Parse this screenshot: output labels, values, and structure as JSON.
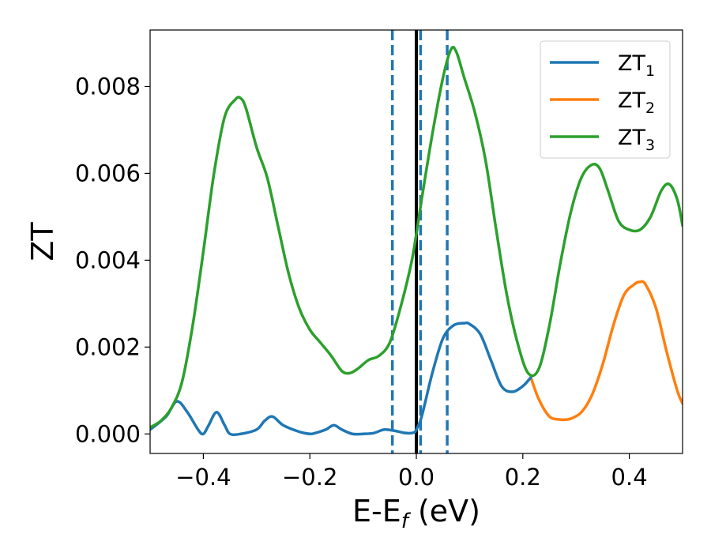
{
  "chart_data": {
    "type": "line",
    "xlabel": "E-E",
    "xlabel_subscript": "f",
    "xlabel_unit": " (eV)",
    "ylabel": "ZT",
    "xlim": [
      -0.5,
      0.5
    ],
    "ylim": [
      -0.00045,
      0.0093
    ],
    "xticks": [
      -0.4,
      -0.2,
      0.0,
      0.2,
      0.4
    ],
    "xtick_labels": [
      "−0.4",
      "−0.2",
      "0.0",
      "0.2",
      "0.4"
    ],
    "yticks": [
      0.0,
      0.002,
      0.004,
      0.006,
      0.008
    ],
    "ytick_labels": [
      "0.000",
      "0.002",
      "0.004",
      "0.006",
      "0.008"
    ],
    "grid": false,
    "legend_position": "top-right",
    "vertical_lines": [
      {
        "x": 0.0,
        "style": "solid",
        "color": "#000000"
      },
      {
        "x": -0.045,
        "style": "dashed",
        "color": "#1f77b4"
      },
      {
        "x": 0.008,
        "style": "dashed",
        "color": "#1f77b4"
      },
      {
        "x": 0.058,
        "style": "dashed",
        "color": "#1f77b4"
      }
    ],
    "series": [
      {
        "name": "ZT",
        "subscript": "1",
        "color": "#1f77b4",
        "x": [
          -0.5,
          -0.47,
          -0.45,
          -0.43,
          -0.41,
          -0.4,
          -0.39,
          -0.375,
          -0.36,
          -0.35,
          -0.33,
          -0.3,
          -0.285,
          -0.27,
          -0.25,
          -0.22,
          -0.2,
          -0.19,
          -0.17,
          -0.155,
          -0.14,
          -0.12,
          -0.1,
          -0.08,
          -0.06,
          -0.04,
          -0.02,
          -0.005,
          0.0,
          0.01,
          0.03,
          0.05,
          0.07,
          0.09,
          0.1,
          0.12,
          0.14,
          0.16,
          0.18,
          0.2,
          0.215
        ],
        "y": [
          0.0001,
          0.0004,
          0.00075,
          0.0005,
          0.0001,
          0.0,
          0.0002,
          0.0005,
          0.0002,
          0.0,
          0.0,
          0.0001,
          0.0003,
          0.0004,
          0.0002,
          5e-05,
          0.0,
          2e-05,
          0.0001,
          0.0002,
          0.0001,
          0.0,
          0.0,
          2e-05,
          0.0001,
          7e-05,
          2e-05,
          3e-05,
          0.0001,
          0.0004,
          0.0014,
          0.0022,
          0.0025,
          0.00255,
          0.00253,
          0.0023,
          0.0017,
          0.0011,
          0.00097,
          0.0011,
          0.0013
        ]
      },
      {
        "name": "ZT",
        "subscript": "2",
        "color": "#ff7f0e",
        "x": [
          0.215,
          0.23,
          0.25,
          0.27,
          0.28,
          0.29,
          0.31,
          0.33,
          0.35,
          0.37,
          0.39,
          0.41,
          0.42,
          0.43,
          0.45,
          0.47,
          0.49,
          0.5
        ],
        "y": [
          0.0013,
          0.0008,
          0.0004,
          0.00033,
          0.00033,
          0.00035,
          0.0005,
          0.0009,
          0.0016,
          0.0025,
          0.0032,
          0.00345,
          0.0035,
          0.00345,
          0.0029,
          0.0019,
          0.001,
          0.0007
        ]
      },
      {
        "name": "ZT",
        "subscript": "3",
        "color": "#2ca02c",
        "x": [
          -0.5,
          -0.48,
          -0.46,
          -0.44,
          -0.42,
          -0.4,
          -0.38,
          -0.36,
          -0.34,
          -0.33,
          -0.32,
          -0.3,
          -0.28,
          -0.26,
          -0.24,
          -0.22,
          -0.2,
          -0.18,
          -0.16,
          -0.14,
          -0.125,
          -0.11,
          -0.09,
          -0.07,
          -0.05,
          -0.03,
          -0.01,
          0.0,
          0.01,
          0.03,
          0.05,
          0.065,
          0.075,
          0.09,
          0.11,
          0.13,
          0.15,
          0.17,
          0.19,
          0.21,
          0.23,
          0.25,
          0.27,
          0.29,
          0.31,
          0.33,
          0.345,
          0.36,
          0.38,
          0.4,
          0.42,
          0.44,
          0.46,
          0.475,
          0.49,
          0.5
        ],
        "y": [
          0.00015,
          0.0003,
          0.0006,
          0.0012,
          0.0025,
          0.0042,
          0.006,
          0.0073,
          0.0077,
          0.00773,
          0.0075,
          0.0066,
          0.0059,
          0.0048,
          0.0037,
          0.0029,
          0.0024,
          0.0021,
          0.0018,
          0.00145,
          0.0014,
          0.0015,
          0.0017,
          0.0018,
          0.0021,
          0.0029,
          0.0039,
          0.0046,
          0.0054,
          0.0069,
          0.0082,
          0.00885,
          0.0088,
          0.0082,
          0.0074,
          0.0063,
          0.0047,
          0.0032,
          0.0021,
          0.0014,
          0.0015,
          0.0025,
          0.0039,
          0.0051,
          0.0059,
          0.0062,
          0.0061,
          0.0056,
          0.0049,
          0.0047,
          0.0047,
          0.005,
          0.0056,
          0.00575,
          0.0054,
          0.0048
        ]
      }
    ]
  }
}
